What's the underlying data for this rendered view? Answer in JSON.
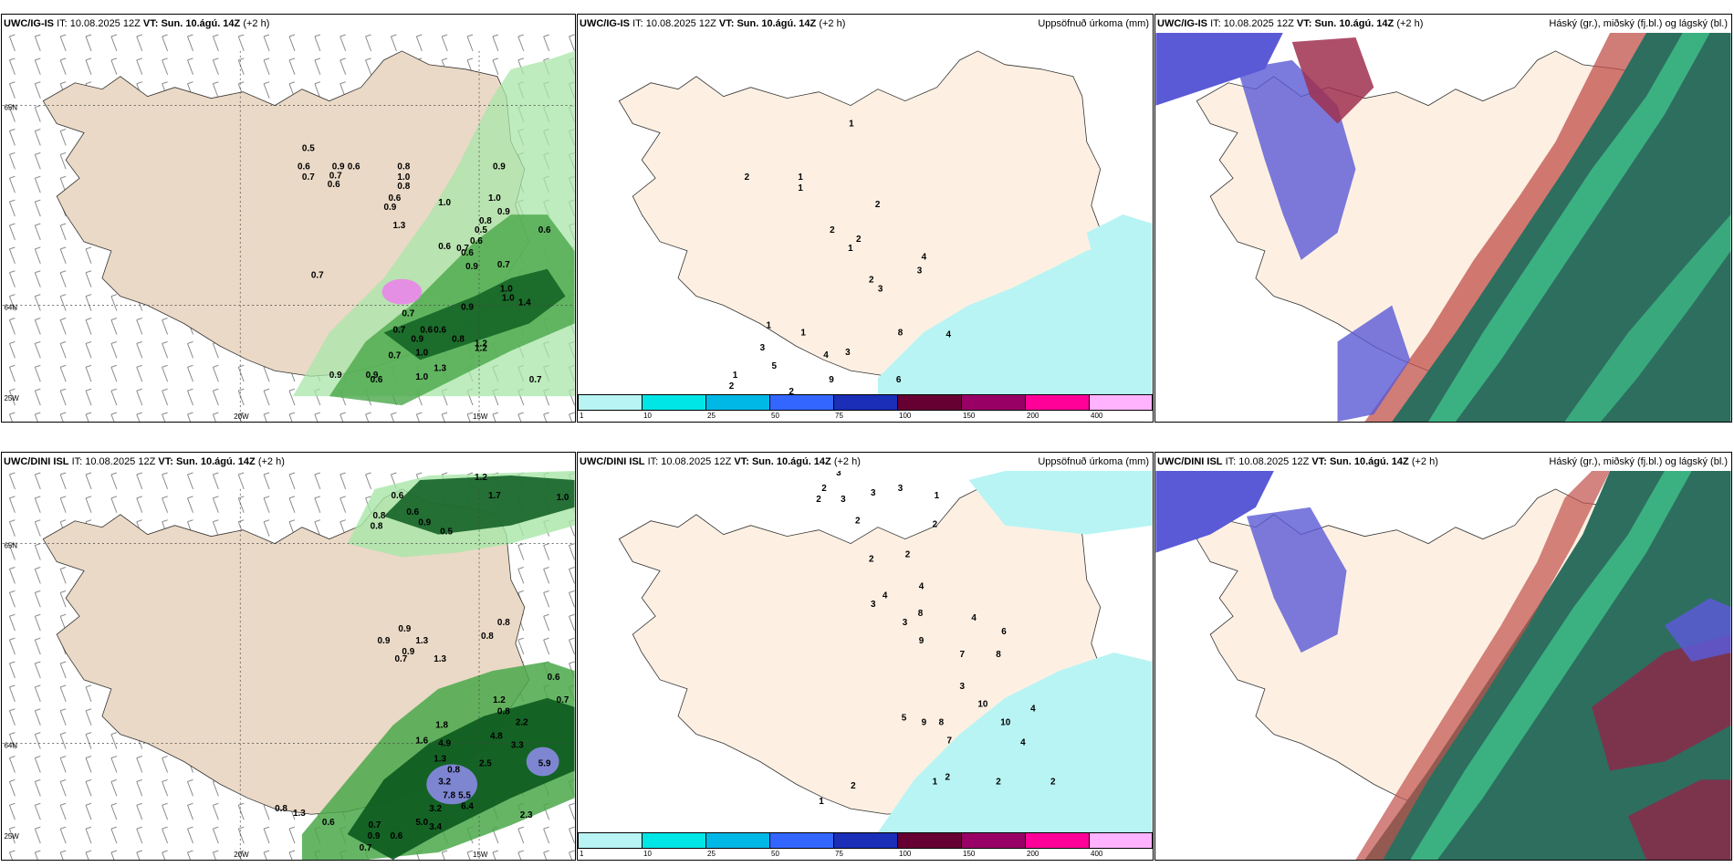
{
  "panels": [
    {
      "id": "p1",
      "model": "UWC/IG-IS",
      "it_label": "IT:",
      "it_value": "10.08.2025 12Z",
      "vt_label": "VT:",
      "vt_value": "Sun. 10.ágú. 14Z",
      "offset": "(+2 h)",
      "right_title": "",
      "axis_labels": {
        "lat_top": "65N",
        "lat_mid": "64N",
        "lat_bot": "25W",
        "lon_left": "20W",
        "lon_right": "15W"
      },
      "values": [
        {
          "t": "0.5"
        },
        {
          "t": "0.6"
        },
        {
          "t": "0.7"
        },
        {
          "t": "0.6"
        },
        {
          "t": "0.9"
        },
        {
          "t": "0.6"
        },
        {
          "t": "0.7"
        },
        {
          "t": "0.8"
        },
        {
          "t": "1.0"
        },
        {
          "t": "0.8"
        },
        {
          "t": "0.9"
        },
        {
          "t": "0.6"
        },
        {
          "t": "0.9"
        },
        {
          "t": "1.0"
        },
        {
          "t": "0.6"
        },
        {
          "t": "1.0"
        },
        {
          "t": "0.9"
        },
        {
          "t": "1.3"
        },
        {
          "t": "0.8"
        },
        {
          "t": "0.7"
        },
        {
          "t": "0.6"
        },
        {
          "t": "0.6"
        },
        {
          "t": "0.6"
        },
        {
          "t": "0.5"
        },
        {
          "t": "0.7"
        },
        {
          "t": "0.9"
        },
        {
          "t": "1.0"
        },
        {
          "t": "1.4"
        },
        {
          "t": "0.7"
        },
        {
          "t": "0.9"
        },
        {
          "t": "1.0"
        },
        {
          "t": "0.7"
        },
        {
          "t": "0.7"
        },
        {
          "t": "0.6"
        },
        {
          "t": "0.6"
        },
        {
          "t": "0.8"
        },
        {
          "t": "0.9"
        },
        {
          "t": "1.0"
        },
        {
          "t": "1.2"
        },
        {
          "t": "1.3"
        },
        {
          "t": "1.2"
        },
        {
          "t": "0.7"
        },
        {
          "t": "0.9"
        },
        {
          "t": "0.9"
        },
        {
          "t": "1.0"
        },
        {
          "t": "0.6"
        },
        {
          "t": "0.7"
        }
      ]
    },
    {
      "id": "p2",
      "model": "UWC/IG-IS",
      "it_label": "IT:",
      "it_value": "10.08.2025 12Z",
      "vt_label": "VT:",
      "vt_value": "Sun. 10.ágú. 14Z",
      "offset": "(+2 h)",
      "right_title": "Uppsöfnuð úrkoma (mm)",
      "values": [
        {
          "t": "1"
        },
        {
          "t": "2"
        },
        {
          "t": "1"
        },
        {
          "t": "1"
        },
        {
          "t": "2"
        },
        {
          "t": "2"
        },
        {
          "t": "2"
        },
        {
          "t": "1"
        },
        {
          "t": "2"
        },
        {
          "t": "3"
        },
        {
          "t": "4"
        },
        {
          "t": "3"
        },
        {
          "t": "1"
        },
        {
          "t": "3"
        },
        {
          "t": "4"
        },
        {
          "t": "1"
        },
        {
          "t": "8"
        },
        {
          "t": "4"
        },
        {
          "t": "9"
        },
        {
          "t": "3"
        },
        {
          "t": "5"
        },
        {
          "t": "1"
        },
        {
          "t": "2"
        },
        {
          "t": "6"
        },
        {
          "t": "2"
        }
      ],
      "colorbar": {
        "colors": [
          "#b8f4f4",
          "#00e6e6",
          "#00b8e6",
          "#3366ff",
          "#1a2eb8",
          "#660033",
          "#990066",
          "#ff0099",
          "#ffb3ff"
        ],
        "ticks": [
          "1",
          "10",
          "25",
          "50",
          "75",
          "100",
          "150",
          "200",
          "400"
        ]
      }
    },
    {
      "id": "p3",
      "model": "UWC/IG-IS",
      "it_label": "IT:",
      "it_value": "10.08.2025 12Z",
      "vt_label": "VT:",
      "vt_value": "Sun. 10.ágú. 14Z",
      "offset": "(+2 h)",
      "right_title": "Háský (gr.), miðský (fj.bl.) og lágský (bl.)"
    },
    {
      "id": "p4",
      "model": "UWC/DINI ISL",
      "it_label": "IT:",
      "it_value": "10.08.2025 12Z",
      "vt_label": "VT:",
      "vt_value": "Sun. 10.ágú. 14Z",
      "offset": "(+2 h)",
      "right_title": "",
      "axis_labels": {
        "lat_top": "65N",
        "lat_mid": "64N",
        "lat_bot": "25W",
        "lon_left": "20W",
        "lon_right": "15W"
      },
      "values": [
        {
          "t": "0.6"
        },
        {
          "t": "0.8"
        },
        {
          "t": "0.6"
        },
        {
          "t": "0.9"
        },
        {
          "t": "1.2"
        },
        {
          "t": "1.7"
        },
        {
          "t": "1.0"
        },
        {
          "t": "0.8"
        },
        {
          "t": "0.5"
        },
        {
          "t": "0.9"
        },
        {
          "t": "0.9"
        },
        {
          "t": "0.9"
        },
        {
          "t": "0.7"
        },
        {
          "t": "1.3"
        },
        {
          "t": "0.8"
        },
        {
          "t": "0.8"
        },
        {
          "t": "1.3"
        },
        {
          "t": "1.2"
        },
        {
          "t": "0.6"
        },
        {
          "t": "0.7"
        },
        {
          "t": "0.8"
        },
        {
          "t": "2.2"
        },
        {
          "t": "1.8"
        },
        {
          "t": "4.8"
        },
        {
          "t": "5.9"
        },
        {
          "t": "4.9"
        },
        {
          "t": "2.5"
        },
        {
          "t": "3.2"
        },
        {
          "t": "7.8"
        },
        {
          "t": "5.5"
        },
        {
          "t": "6.4"
        },
        {
          "t": "3.2"
        },
        {
          "t": "5.0"
        },
        {
          "t": "3.4"
        },
        {
          "t": "1.3"
        },
        {
          "t": "0.6"
        },
        {
          "t": "0.7"
        },
        {
          "t": "0.9"
        },
        {
          "t": "0.6"
        },
        {
          "t": "0.7"
        },
        {
          "t": "0.8"
        },
        {
          "t": "1.3"
        },
        {
          "t": "0.8"
        },
        {
          "t": "1.6"
        },
        {
          "t": "3.3"
        },
        {
          "t": "2.3"
        }
      ]
    },
    {
      "id": "p5",
      "model": "UWC/DINI ISL",
      "it_label": "IT:",
      "it_value": "10.08.2025 12Z",
      "vt_label": "VT:",
      "vt_value": "Sun. 10.ágú. 14Z",
      "offset": "(+2 h)",
      "right_title": "Uppsöfnuð úrkoma (mm)",
      "values": [
        {
          "t": "3"
        },
        {
          "t": "2"
        },
        {
          "t": "3"
        },
        {
          "t": "3"
        },
        {
          "t": "3"
        },
        {
          "t": "2"
        },
        {
          "t": "2"
        },
        {
          "t": "1"
        },
        {
          "t": "2"
        },
        {
          "t": "2"
        },
        {
          "t": "2"
        },
        {
          "t": "4"
        },
        {
          "t": "3"
        },
        {
          "t": "4"
        },
        {
          "t": "3"
        },
        {
          "t": "8"
        },
        {
          "t": "9"
        },
        {
          "t": "4"
        },
        {
          "t": "6"
        },
        {
          "t": "8"
        },
        {
          "t": "7"
        },
        {
          "t": "10"
        },
        {
          "t": "5"
        },
        {
          "t": "3"
        },
        {
          "t": "4"
        },
        {
          "t": "10"
        },
        {
          "t": "8"
        },
        {
          "t": "7"
        },
        {
          "t": "9"
        },
        {
          "t": "4"
        },
        {
          "t": "2"
        },
        {
          "t": "1"
        },
        {
          "t": "2"
        },
        {
          "t": "2"
        },
        {
          "t": "1"
        },
        {
          "t": "2"
        }
      ],
      "colorbar": {
        "colors": [
          "#b8f4f4",
          "#00e6e6",
          "#00b8e6",
          "#3366ff",
          "#1a2eb8",
          "#660033",
          "#990066",
          "#ff0099",
          "#ffb3ff"
        ],
        "ticks": [
          "1",
          "10",
          "25",
          "50",
          "75",
          "100",
          "150",
          "200",
          "400"
        ]
      }
    },
    {
      "id": "p6",
      "model": "UWC/DINI ISL",
      "it_label": "IT:",
      "it_value": "10.08.2025 12Z",
      "vt_label": "VT:",
      "vt_value": "Sun. 10.ágú. 14Z",
      "offset": "(+2 h)",
      "right_title": "Háský (gr.), miðský (fj.bl.) og lágský (bl.)"
    }
  ]
}
